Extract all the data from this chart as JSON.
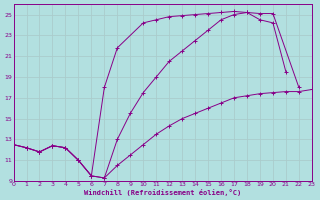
{
  "xlabel": "Windchill (Refroidissement éolien,°C)",
  "bg_color": "#b2e0e0",
  "grid_color": "#cceeee",
  "line_color": "#880088",
  "xlim": [
    0,
    23
  ],
  "ylim": [
    9,
    26
  ],
  "xticks": [
    0,
    1,
    2,
    3,
    4,
    5,
    6,
    7,
    8,
    9,
    10,
    11,
    12,
    13,
    14,
    15,
    16,
    17,
    18,
    19,
    20,
    21,
    22,
    23
  ],
  "yticks": [
    9,
    11,
    13,
    15,
    17,
    19,
    21,
    23,
    25
  ],
  "line1_x": [
    0,
    1,
    2,
    3,
    4,
    5,
    6,
    7,
    8,
    10,
    11,
    12,
    13,
    14,
    15,
    16,
    17,
    18,
    19,
    20,
    22
  ],
  "line1_y": [
    12.5,
    12.2,
    11.8,
    12.4,
    12.2,
    11.0,
    9.5,
    18.0,
    21.8,
    24.2,
    24.5,
    24.8,
    24.9,
    25.0,
    25.1,
    25.2,
    25.3,
    25.2,
    25.1,
    25.1,
    18.0
  ],
  "line2_x": [
    0,
    1,
    2,
    3,
    4,
    5,
    6,
    7,
    8,
    9,
    10,
    11,
    12,
    13,
    14,
    15,
    16,
    17,
    18,
    19,
    20,
    21,
    22,
    23
  ],
  "line2_y": [
    12.5,
    12.2,
    11.8,
    12.4,
    12.2,
    11.0,
    9.5,
    9.3,
    10.5,
    11.5,
    12.5,
    13.5,
    14.3,
    15.0,
    15.5,
    16.0,
    16.5,
    17.0,
    17.2,
    17.4,
    17.5,
    17.6,
    17.6,
    17.8
  ],
  "line3_x": [
    0,
    1,
    2,
    3,
    4,
    5,
    6,
    7,
    8,
    9,
    10,
    11,
    12,
    13,
    14,
    15,
    16,
    17,
    18,
    19,
    20,
    21
  ],
  "line3_y": [
    12.5,
    12.2,
    11.8,
    12.4,
    12.2,
    11.0,
    9.5,
    9.3,
    13.0,
    15.5,
    17.5,
    19.0,
    20.5,
    21.5,
    22.5,
    23.5,
    24.5,
    25.0,
    25.2,
    24.5,
    24.2,
    19.5
  ]
}
